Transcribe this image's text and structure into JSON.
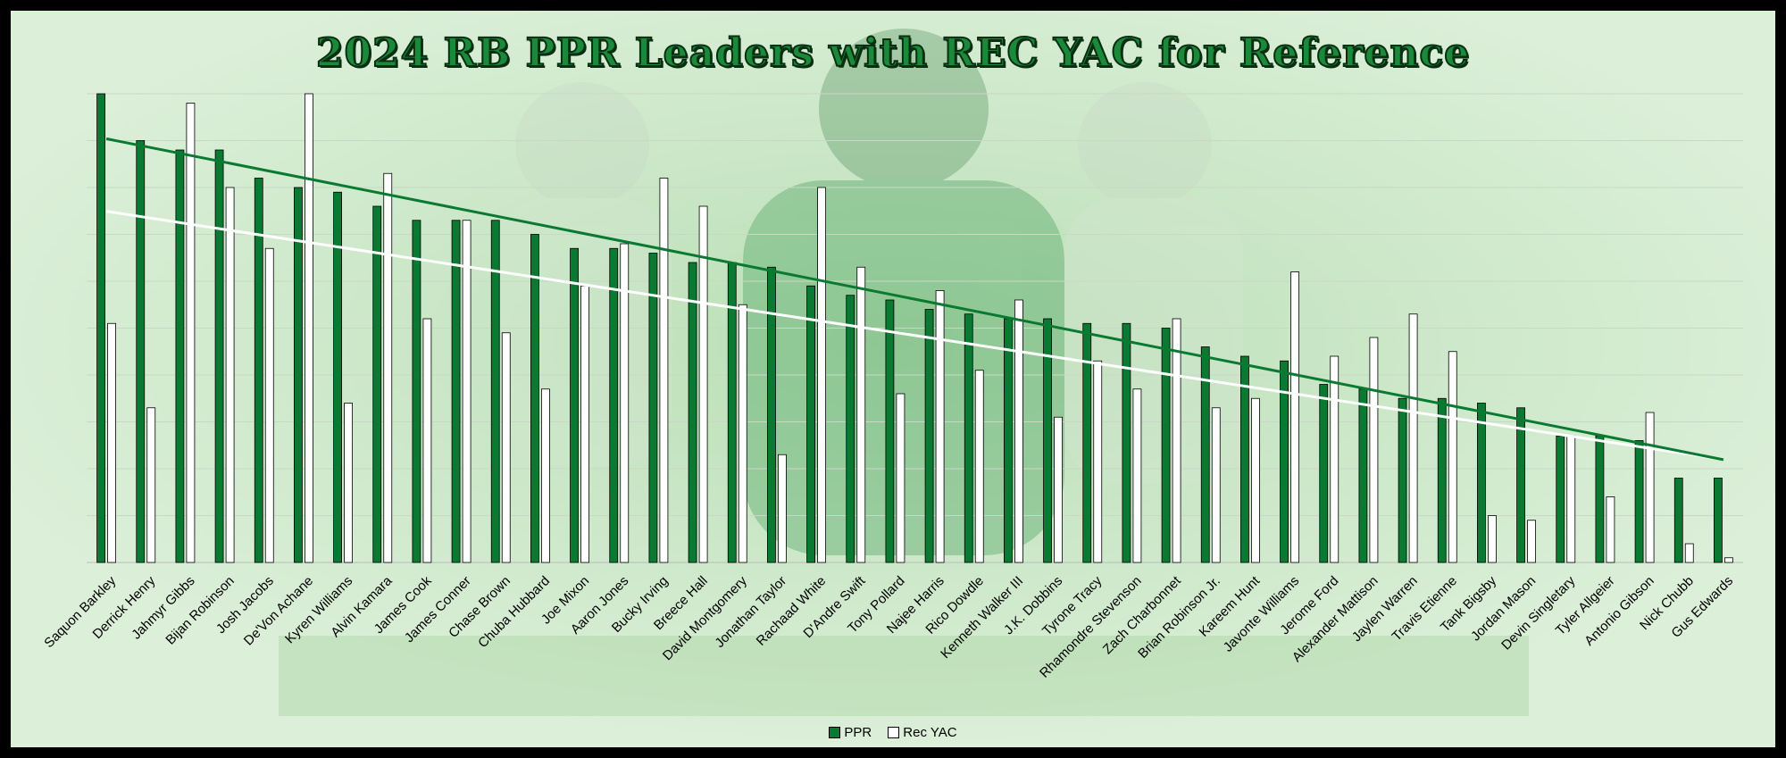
{
  "colors": {
    "ppr": "#0a7a32",
    "rec_yac": "#ffffff",
    "ppr_trend": "#0a7a32",
    "rec_yac_trend": "#ffffff"
  },
  "chart_data": {
    "type": "bar",
    "title": "2024 RB PPR Leaders with REC YAC for Reference",
    "grid": true,
    "legend_position": "bottom",
    "trendlines": [
      "linear PPR",
      "linear Rec YAC"
    ],
    "categories": [
      "Saquon Barkley",
      "Derrick Henry",
      "Jahmyr Gibbs",
      "Bijan Robinson",
      "Josh Jacobs",
      "De'Von Achane",
      "Kyren Williams",
      "Alvin Kamara",
      "James Cook",
      "James Conner",
      "Chase Brown",
      "Chuba Hubbard",
      "Joe Mixon",
      "Aaron Jones",
      "Bucky Irving",
      "Breece Hall",
      "David Montgomery",
      "Jonathan Taylor",
      "Rachaad White",
      "D'Andre Swift",
      "Tony Pollard",
      "Najee Harris",
      "Rico Dowdle",
      "Kenneth Walker III",
      "J.K. Dobbins",
      "Tyrone Tracy",
      "Rhamondre Stevenson",
      "Zach Charbonnet",
      "Brian Robinson Jr.",
      "Kareem Hunt",
      "Javonte Williams",
      "Jerome Ford",
      "Alexander Mattison",
      "Jaylen Warren",
      "Travis Etienne",
      "Tank Bigsby",
      "Jordan Mason",
      "Devin Singletary",
      "Tyler Allgeier",
      "Antonio Gibson",
      "Nick Chubb",
      "Gus Edwards"
    ],
    "series": [
      {
        "name": "PPR",
        "values": [
          100,
          90,
          88,
          88,
          82,
          80,
          79,
          76,
          73,
          73,
          73,
          70,
          67,
          67,
          66,
          64,
          64,
          63,
          59,
          57,
          56,
          54,
          53,
          52,
          52,
          51,
          51,
          50,
          46,
          44,
          43,
          38,
          37,
          35,
          35,
          34,
          33,
          27,
          27,
          26,
          18,
          18
        ]
      },
      {
        "name": "Rec YAC",
        "values": [
          51,
          33,
          98,
          80,
          67,
          100,
          34,
          83,
          52,
          73,
          49,
          37,
          59,
          68,
          82,
          76,
          55,
          23,
          80,
          63,
          36,
          58,
          41,
          56,
          31,
          43,
          37,
          52,
          33,
          35,
          62,
          44,
          48,
          53,
          45,
          10,
          9,
          27,
          14,
          32,
          4,
          1
        ]
      }
    ],
    "ylim": [
      0,
      100
    ]
  }
}
